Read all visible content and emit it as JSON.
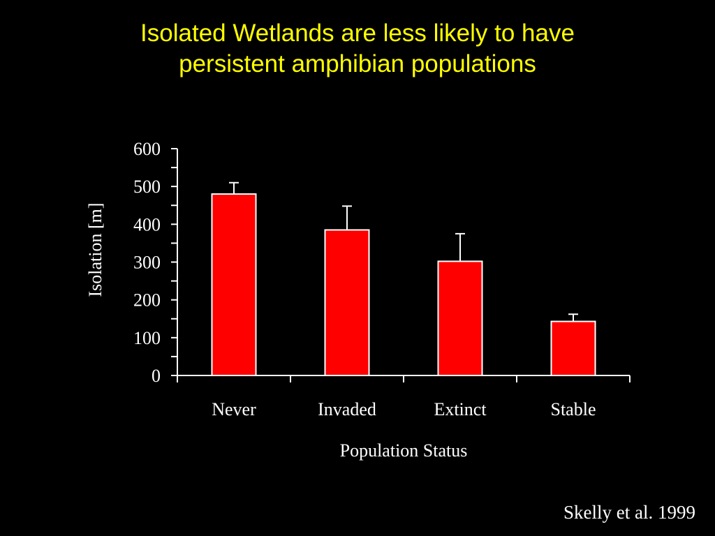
{
  "title": {
    "line1": "Isolated Wetlands are less likely to have",
    "line2": "persistent amphibian populations"
  },
  "citation": "Skelly et al. 1999",
  "colors": {
    "background": "#000000",
    "title": "#ffff00",
    "bar_fill": "#ff0000",
    "bar_stroke": "#ffffff",
    "axis": "#ffffff",
    "text": "#ffffff"
  },
  "chart_data": {
    "type": "bar",
    "categories": [
      "Never",
      "Invaded",
      "Extinct",
      "Stable"
    ],
    "values": [
      480,
      385,
      302,
      143
    ],
    "error_upper": [
      510,
      448,
      375,
      162
    ],
    "xlabel": "Population Status",
    "ylabel": "Isolation [m]",
    "ylim": [
      0,
      600
    ],
    "yticks": [
      0,
      100,
      200,
      300,
      400,
      500,
      600
    ],
    "grid": false,
    "legend": "none"
  }
}
